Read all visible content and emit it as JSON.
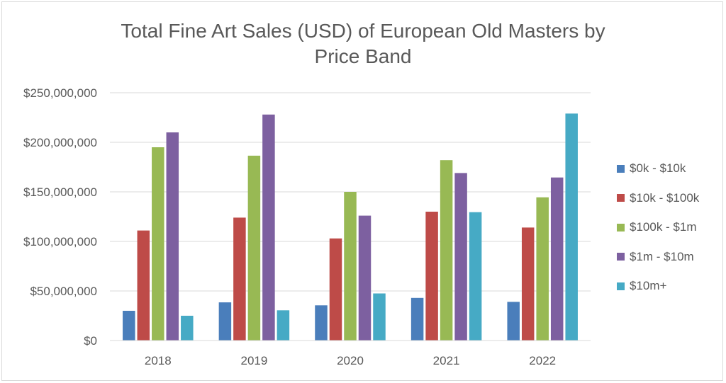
{
  "chart_data": {
    "type": "bar",
    "title": "Total Fine Art Sales (USD) of European Old Masters by Price Band",
    "xlabel": "",
    "ylabel": "",
    "categories": [
      "2018",
      "2019",
      "2020",
      "2021",
      "2022"
    ],
    "ylim": [
      0,
      250000000
    ],
    "yticks": [
      0,
      50000000,
      100000000,
      150000000,
      200000000,
      250000000
    ],
    "ytick_labels": [
      "$0",
      "$50,000,000",
      "$100,000,000",
      "$150,000,000",
      "$200,000,000",
      "$250,000,000"
    ],
    "grid": true,
    "legend_position": "right",
    "series": [
      {
        "name": "$0k - $10k",
        "color": "#4a7ebb",
        "values": [
          30000000,
          38500000,
          35500000,
          43000000,
          39000000
        ]
      },
      {
        "name": "$10k - $100k",
        "color": "#be4b48",
        "values": [
          111000000,
          124000000,
          103000000,
          130000000,
          114000000
        ]
      },
      {
        "name": "$100k - $1m",
        "color": "#98b954",
        "values": [
          195000000,
          186500000,
          150000000,
          182000000,
          144500000
        ]
      },
      {
        "name": "$1m - $10m",
        "color": "#7d60a0",
        "values": [
          210000000,
          228000000,
          126000000,
          169000000,
          164500000
        ]
      },
      {
        "name": "$10m+",
        "color": "#46aac5",
        "values": [
          25000000,
          30500000,
          47500000,
          129500000,
          229000000
        ]
      }
    ]
  }
}
